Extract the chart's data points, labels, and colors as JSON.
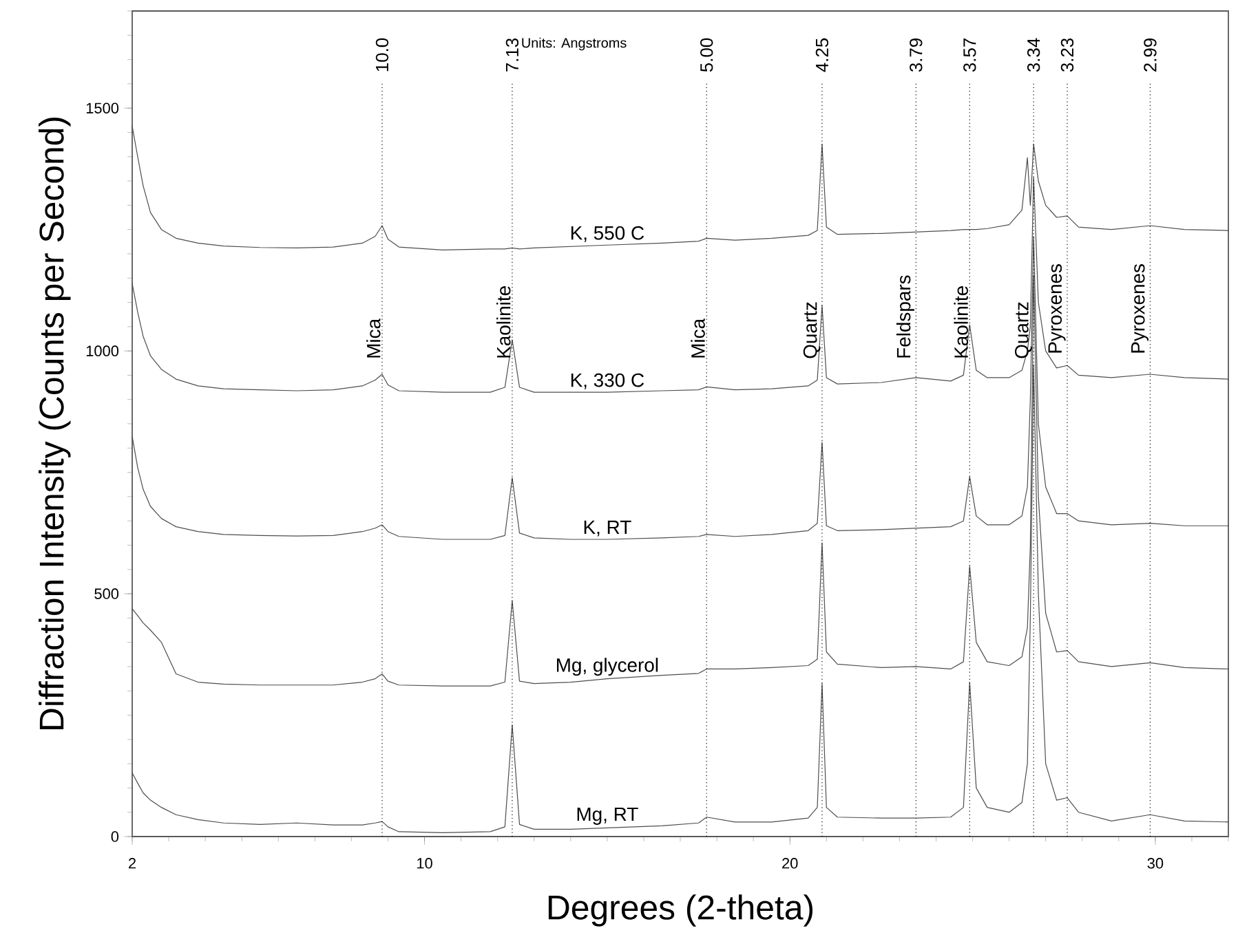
{
  "chart_data": {
    "type": "line",
    "xlabel": "Degrees (2-theta)",
    "ylabel": "Diffraction Intensity (Counts per Second)",
    "xlim": [
      2,
      32
    ],
    "ylim": [
      0,
      1700
    ],
    "xticks": [
      2,
      10,
      20,
      30
    ],
    "yticks": [
      0,
      500,
      1000,
      1500
    ],
    "grid": false,
    "marker": "none",
    "line_style": "solid",
    "x": [
      2,
      2.15,
      2.3,
      2.5,
      2.8,
      3.2,
      3.8,
      4.5,
      5.5,
      6.5,
      7.5,
      8.3,
      8.65,
      8.84,
      9.0,
      9.3,
      10.5,
      11.8,
      12.2,
      12.4,
      12.6,
      13,
      14,
      15,
      16.5,
      17.5,
      17.72,
      18.5,
      19.5,
      20.5,
      20.75,
      20.88,
      21.0,
      21.3,
      22.5,
      23.45,
      24.4,
      24.75,
      24.92,
      25.1,
      25.4,
      26.0,
      26.35,
      26.5,
      26.58,
      26.67,
      26.8,
      27.0,
      27.3,
      27.59,
      27.9,
      28.8,
      29.86,
      30.8,
      32
    ],
    "series": [
      {
        "name": "K, 550 C",
        "color": "#4d4d4d",
        "values": [
          1463,
          1400,
          1340,
          1285,
          1250,
          1232,
          1222,
          1216,
          1213,
          1212,
          1214,
          1222,
          1236,
          1258,
          1230,
          1214,
          1208,
          1210,
          1210,
          1212,
          1210,
          1212,
          1215,
          1218,
          1222,
          1226,
          1232,
          1228,
          1232,
          1238,
          1248,
          1426,
          1255,
          1240,
          1242,
          1245,
          1248,
          1250,
          1250,
          1250,
          1252,
          1260,
          1290,
          1398,
          1300,
          1426,
          1350,
          1300,
          1275,
          1278,
          1255,
          1250,
          1258,
          1250,
          1248
        ]
      },
      {
        "name": "K, 330 C",
        "color": "#4d4d4d",
        "values": [
          1139,
          1080,
          1030,
          990,
          962,
          942,
          928,
          922,
          920,
          918,
          920,
          928,
          940,
          952,
          930,
          918,
          915,
          915,
          925,
          1023,
          925,
          915,
          915,
          915,
          918,
          920,
          926,
          920,
          922,
          928,
          940,
          1094,
          945,
          932,
          935,
          945,
          938,
          950,
          1054,
          960,
          945,
          945,
          960,
          1000,
          1050,
          1358,
          1100,
          1000,
          965,
          970,
          950,
          945,
          952,
          945,
          942
        ]
      },
      {
        "name": "K, RT",
        "color": "#4d4d4d",
        "values": [
          824,
          760,
          715,
          680,
          655,
          638,
          628,
          622,
          620,
          619,
          620,
          628,
          635,
          642,
          628,
          618,
          612,
          612,
          620,
          739,
          625,
          615,
          612,
          612,
          615,
          618,
          622,
          618,
          622,
          630,
          645,
          812,
          640,
          630,
          632,
          635,
          638,
          650,
          741,
          660,
          642,
          642,
          660,
          720,
          900,
          1236,
          850,
          720,
          665,
          665,
          650,
          642,
          645,
          640,
          640
        ]
      },
      {
        "name": "Mg, glycerol",
        "color": "#4d4d4d",
        "values": [
          469,
          455,
          440,
          425,
          400,
          335,
          318,
          314,
          312,
          312,
          312,
          318,
          325,
          335,
          320,
          312,
          310,
          310,
          318,
          486,
          320,
          315,
          318,
          325,
          332,
          336,
          345,
          345,
          348,
          352,
          365,
          605,
          380,
          355,
          348,
          350,
          345,
          360,
          557,
          400,
          360,
          352,
          370,
          430,
          600,
          1156,
          700,
          460,
          380,
          383,
          360,
          350,
          358,
          348,
          345
        ]
      },
      {
        "name": "Mg, RT",
        "color": "#4d4d4d",
        "values": [
          131,
          110,
          90,
          75,
          60,
          45,
          35,
          28,
          25,
          28,
          24,
          24,
          28,
          31,
          20,
          10,
          8,
          10,
          20,
          230,
          25,
          15,
          15,
          18,
          22,
          28,
          40,
          30,
          30,
          38,
          60,
          315,
          60,
          40,
          38,
          38,
          40,
          60,
          318,
          100,
          60,
          50,
          70,
          150,
          450,
          972,
          500,
          150,
          75,
          80,
          50,
          32,
          45,
          32,
          30
        ]
      }
    ],
    "ref_lines": [
      {
        "axis": "x",
        "value": 8.84,
        "color": "#000000",
        "line_style": "dotted"
      },
      {
        "axis": "x",
        "value": 12.4,
        "color": "#000000",
        "line_style": "dotted"
      },
      {
        "axis": "x",
        "value": 17.72,
        "color": "#000000",
        "line_style": "dotted"
      },
      {
        "axis": "x",
        "value": 20.88,
        "color": "#000000",
        "line_style": "dotted"
      },
      {
        "axis": "x",
        "value": 23.45,
        "color": "#000000",
        "line_style": "dotted"
      },
      {
        "axis": "x",
        "value": 24.92,
        "color": "#000000",
        "line_style": "dotted"
      },
      {
        "axis": "x",
        "value": 26.67,
        "color": "#000000",
        "line_style": "dotted"
      },
      {
        "axis": "x",
        "value": 27.59,
        "color": "#000000",
        "line_style": "dotted"
      },
      {
        "axis": "x",
        "value": 29.86,
        "color": "#000000",
        "line_style": "dotted"
      }
    ],
    "annotations": [
      "Units: Angstroms",
      "10.0",
      "7.13",
      "5.00",
      "4.25",
      "3.79",
      "3.57",
      "3.34",
      "3.23",
      "2.99",
      {
        "text": "Mica",
        "x": 8.84,
        "y": 980
      },
      {
        "text": "Kaolinite",
        "x": 12.4,
        "y": 980
      },
      {
        "text": "Mica",
        "x": 17.72,
        "y": 980
      },
      {
        "text": "Quartz",
        "x": 20.88,
        "y": 980
      },
      {
        "text": "Feldspars",
        "x": 23.45,
        "y": 980
      },
      {
        "text": "Kaolinite",
        "x": 24.92,
        "y": 980
      },
      {
        "text": "Quartz",
        "x": 26.67,
        "y": 980
      },
      {
        "text": "Pyroxenes",
        "x": 27.59,
        "y": 990
      },
      {
        "text": "Pyroxenes",
        "x": 29.86,
        "y": 990
      }
    ]
  }
}
